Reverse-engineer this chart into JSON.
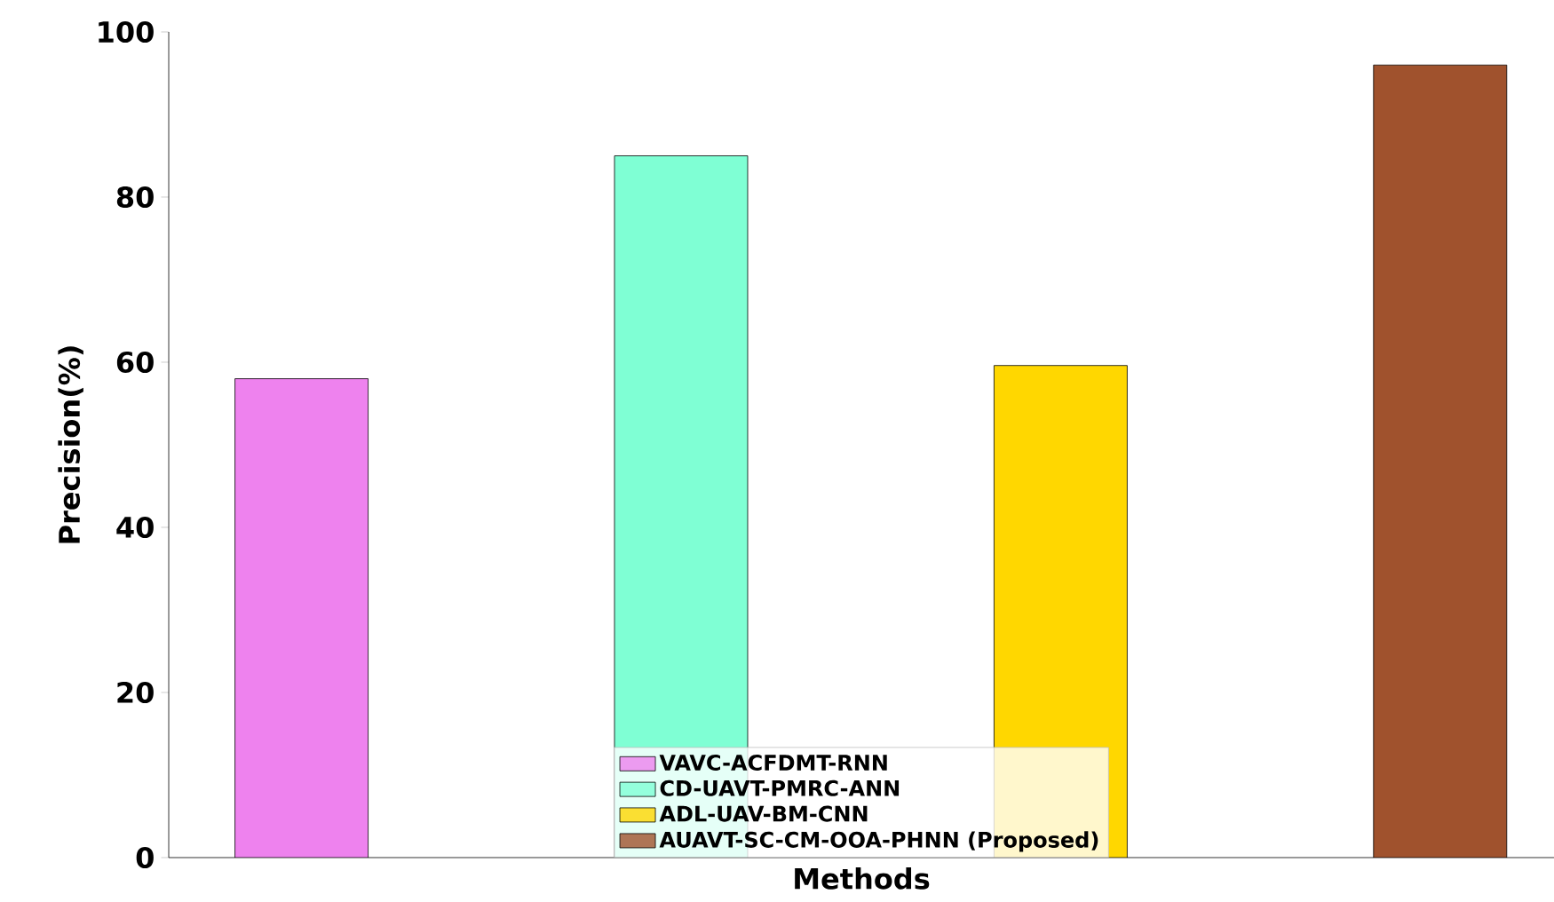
{
  "chart_data": {
    "type": "bar",
    "xlabel": "Methods",
    "ylabel": "Precision(%)",
    "categories": [
      null,
      null,
      null,
      null
    ],
    "series": [
      {
        "name": "VAVC-ACFDMT-RNN",
        "color": "#ee82ee",
        "values": [
          58,
          null,
          null,
          null
        ]
      },
      {
        "name": "CD-UAVT-PMRC-ANN",
        "color": "#7fffd4",
        "values": [
          null,
          85,
          null,
          null
        ]
      },
      {
        "name": "ADL-UAV-BM-CNN",
        "color": "#ffd700",
        "values": [
          null,
          null,
          59.6,
          null
        ]
      },
      {
        "name": "AUAVT-SC-CM-OOA-PHNN (Proposed)",
        "color": "#a0522d",
        "values": [
          null,
          null,
          null,
          96
        ]
      }
    ],
    "ylim": [
      0,
      100
    ],
    "yticks": [
      0,
      20,
      40,
      60,
      80,
      100
    ],
    "legend": "bottom",
    "tick_labels": "y"
  }
}
